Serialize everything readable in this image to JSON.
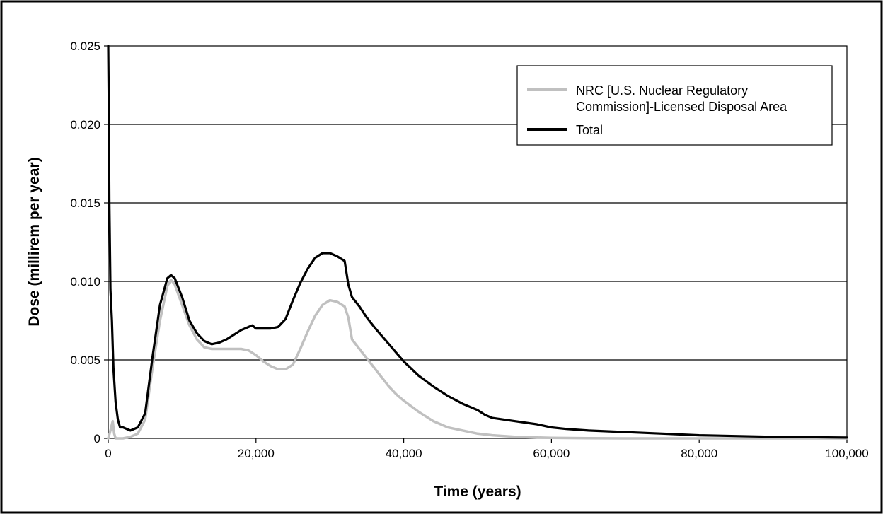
{
  "chart_data": {
    "type": "line",
    "xlabel": "Time (years)",
    "ylabel": "Dose (millirem per year)",
    "xlim": [
      0,
      100000
    ],
    "ylim": [
      0,
      0.025
    ],
    "x_ticks": [
      0,
      20000,
      40000,
      60000,
      80000,
      100000
    ],
    "x_tick_labels": [
      "0",
      "20,000",
      "40,000",
      "60,000",
      "80,000",
      "100,000"
    ],
    "y_ticks": [
      0,
      0.005,
      0.01,
      0.015,
      0.02,
      0.025
    ],
    "y_tick_labels": [
      "0",
      "0.005",
      "0.010",
      "0.015",
      "0.020",
      "0.025"
    ],
    "grid": "horizontal",
    "legend_position": "top-right",
    "series": [
      {
        "name": "NRC [U.S. Nuclear Regulatory Commission]-Licensed Disposal Area",
        "legend_lines": [
          "NRC [U.S. Nuclear Regulatory",
          "Commission]-Licensed Disposal Area"
        ],
        "color": "#c0c0c0",
        "x": [
          0,
          300,
          600,
          800,
          1000,
          2000,
          3000,
          4000,
          5000,
          6000,
          7000,
          8000,
          8500,
          9000,
          10000,
          11000,
          12000,
          13000,
          14000,
          16000,
          18000,
          19000,
          20000,
          21000,
          22000,
          23000,
          24000,
          25000,
          26000,
          27000,
          28000,
          29000,
          30000,
          31000,
          32000,
          32500,
          33000,
          34000,
          35000,
          36000,
          37000,
          38000,
          39000,
          40000,
          42000,
          44000,
          46000,
          48000,
          50000,
          52000,
          55000,
          60000,
          65000,
          70000,
          80000,
          100000
        ],
        "y": [
          0,
          0.0005,
          0.0011,
          0.0003,
          0,
          0,
          0.0001,
          0.0003,
          0.0012,
          0.0045,
          0.0075,
          0.0097,
          0.0101,
          0.0098,
          0.0085,
          0.0072,
          0.0063,
          0.0058,
          0.0057,
          0.0057,
          0.0057,
          0.0056,
          0.0053,
          0.0049,
          0.0046,
          0.0044,
          0.0044,
          0.0047,
          0.0057,
          0.0068,
          0.0078,
          0.0085,
          0.0088,
          0.0087,
          0.0084,
          0.0077,
          0.0063,
          0.0057,
          0.0051,
          0.0045,
          0.0039,
          0.0033,
          0.0028,
          0.0024,
          0.0017,
          0.0011,
          0.0007,
          0.0005,
          0.0003,
          0.0002,
          0.0001,
          3e-05,
          1e-05,
          0,
          0,
          0
        ]
      },
      {
        "name": "Total",
        "legend_lines": [
          "Total"
        ],
        "color": "#000000",
        "x": [
          0,
          80,
          150,
          300,
          500,
          700,
          1000,
          1300,
          1600,
          2000,
          3000,
          4000,
          5000,
          6000,
          7000,
          8000,
          8500,
          9000,
          10000,
          11000,
          12000,
          13000,
          14000,
          15000,
          16000,
          17000,
          18000,
          19000,
          19500,
          20000,
          21000,
          22000,
          23000,
          24000,
          25000,
          26000,
          27000,
          28000,
          29000,
          30000,
          31000,
          32000,
          32500,
          33000,
          34000,
          35000,
          36000,
          38000,
          40000,
          42000,
          44000,
          46000,
          48000,
          50000,
          51000,
          52000,
          55000,
          58000,
          60000,
          62000,
          65000,
          70000,
          75000,
          80000,
          90000,
          100000
        ],
        "y": [
          0.025,
          0.021,
          0.015,
          0.0095,
          0.0075,
          0.0045,
          0.0023,
          0.0012,
          0.0007,
          0.0007,
          0.0005,
          0.0007,
          0.0016,
          0.0052,
          0.0085,
          0.0102,
          0.0104,
          0.0102,
          0.009,
          0.0075,
          0.0067,
          0.0062,
          0.006,
          0.0061,
          0.0063,
          0.0066,
          0.0069,
          0.0071,
          0.0072,
          0.007,
          0.007,
          0.007,
          0.0071,
          0.0076,
          0.0088,
          0.0099,
          0.0108,
          0.0115,
          0.0118,
          0.0118,
          0.0116,
          0.0113,
          0.0098,
          0.009,
          0.0084,
          0.0077,
          0.0071,
          0.006,
          0.0049,
          0.004,
          0.0033,
          0.0027,
          0.0022,
          0.0018,
          0.0015,
          0.0013,
          0.0011,
          0.0009,
          0.0007,
          0.0006,
          0.0005,
          0.0004,
          0.0003,
          0.0002,
          0.0001,
          5e-05
        ]
      }
    ]
  }
}
